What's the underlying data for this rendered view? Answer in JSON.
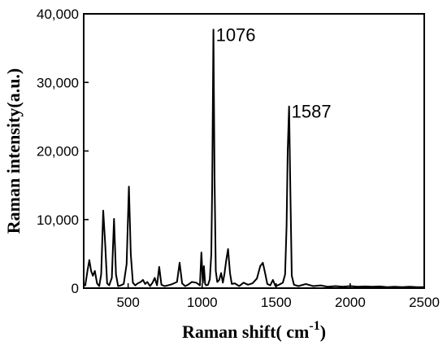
{
  "chart_data": {
    "type": "line",
    "title": "",
    "xlabel": "Raman shift( cm",
    "xlabel_sup": "-1",
    "xlabel_close": ")",
    "ylabel": "Raman intensity(a.u.)",
    "xlim": [
      200,
      2500
    ],
    "ylim": [
      0,
      40000
    ],
    "x_ticks": [
      500,
      1000,
      1500,
      2000,
      2500
    ],
    "y_ticks": [
      0,
      10000,
      20000,
      30000,
      40000
    ],
    "x_tick_labels": [
      "500",
      "1000",
      "1500",
      "2000",
      "2500"
    ],
    "y_tick_labels": [
      "0",
      "10,000",
      "20,000",
      "30,000",
      "40,000"
    ],
    "grid": false,
    "annotations": [
      {
        "text": "1076",
        "x": 1076,
        "y": 37700
      },
      {
        "text": "1587",
        "x": 1587,
        "y": 26500
      }
    ],
    "series": [
      {
        "x": [
          210,
          225,
          238,
          250,
          262,
          275,
          290,
          305,
          318,
          332,
          345,
          358,
          372,
          390,
          405,
          418,
          432,
          450,
          470,
          490,
          505,
          518,
          532,
          548,
          565,
          585,
          600,
          615,
          630,
          648,
          665,
          680,
          695,
          710,
          725,
          745,
          770,
          800,
          830,
          848,
          865,
          885,
          905,
          930,
          960,
          985,
          995,
          1005,
          1012,
          1020,
          1028,
          1040,
          1052,
          1062,
          1068,
          1076,
          1084,
          1092,
          1102,
          1115,
          1128,
          1140,
          1150,
          1162,
          1175,
          1188,
          1200,
          1220,
          1250,
          1280,
          1310,
          1340,
          1370,
          1392,
          1410,
          1425,
          1440,
          1460,
          1478,
          1495,
          1520,
          1545,
          1560,
          1570,
          1578,
          1587,
          1596,
          1605,
          1620,
          1650,
          1700,
          1750,
          1800,
          1850,
          1900,
          1950,
          2000,
          2050,
          2100,
          2150,
          2200,
          2250,
          2300,
          2350,
          2400,
          2450,
          2500
        ],
        "y": [
          300,
          2500,
          4100,
          2500,
          1800,
          2500,
          700,
          300,
          2000,
          11300,
          6500,
          700,
          400,
          1500,
          10100,
          2000,
          300,
          400,
          600,
          3500,
          14800,
          5000,
          800,
          400,
          700,
          900,
          1200,
          600,
          900,
          300,
          800,
          1500,
          400,
          3100,
          500,
          300,
          400,
          600,
          900,
          3700,
          700,
          300,
          500,
          900,
          800,
          400,
          5200,
          800,
          3200,
          600,
          400,
          500,
          1300,
          5000,
          15000,
          37700,
          16000,
          2500,
          900,
          1200,
          2200,
          800,
          2000,
          4000,
          5700,
          2200,
          600,
          700,
          300,
          800,
          500,
          700,
          1400,
          3200,
          3700,
          2200,
          600,
          400,
          1200,
          300,
          500,
          800,
          2000,
          9000,
          20000,
          26500,
          14000,
          1800,
          500,
          300,
          600,
          300,
          400,
          200,
          300,
          200,
          300,
          200,
          250,
          200,
          250,
          150,
          200,
          150,
          200,
          150,
          150
        ]
      }
    ]
  }
}
